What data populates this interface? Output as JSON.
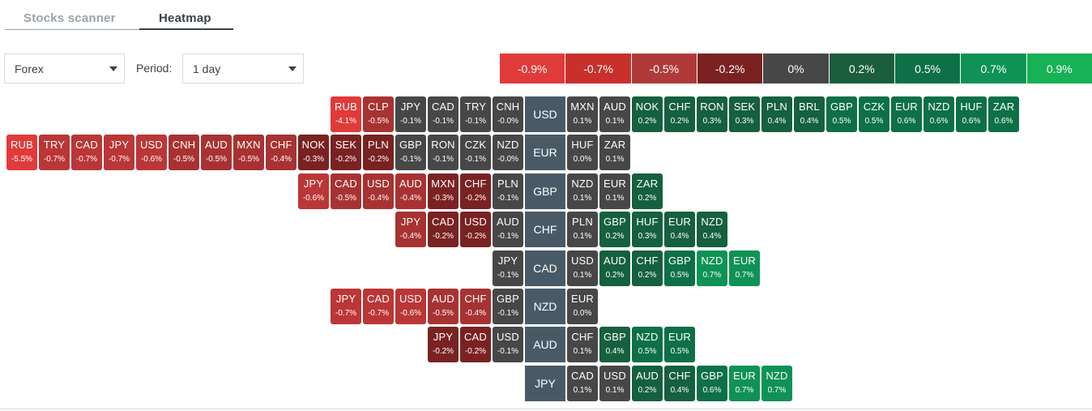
{
  "tabs": {
    "stocks_scanner": "Stocks scanner",
    "heatmap": "Heatmap"
  },
  "filters": {
    "market_value": "Forex",
    "period_label": "Period:",
    "period_value": "1 day"
  },
  "legend": [
    {
      "label": "-0.9%",
      "color": "#e13a3a"
    },
    {
      "label": "-0.7%",
      "color": "#c9302c"
    },
    {
      "label": "-0.5%",
      "color": "#b03a3a"
    },
    {
      "label": "-0.2%",
      "color": "#7a2222"
    },
    {
      "label": "0%",
      "color": "#474747"
    },
    {
      "label": "0.2%",
      "color": "#1a5e3d"
    },
    {
      "label": "0.5%",
      "color": "#0d7047"
    },
    {
      "label": "0.7%",
      "color": "#0f9256"
    },
    {
      "label": "0.9%",
      "color": "#17b156"
    }
  ],
  "rows": [
    {
      "base": "USD",
      "neg": [
        [
          "RUB",
          "-4.1%"
        ],
        [
          "CLP",
          "-0.5%"
        ],
        [
          "JPY",
          "-0.1%"
        ],
        [
          "CAD",
          "-0.1%"
        ],
        [
          "TRY",
          "-0.1%"
        ],
        [
          "CNH",
          "-0.0%"
        ]
      ],
      "pos": [
        [
          "MXN",
          "0.1%"
        ],
        [
          "AUD",
          "0.1%"
        ],
        [
          "NOK",
          "0.2%"
        ],
        [
          "CHF",
          "0.2%"
        ],
        [
          "RON",
          "0.3%"
        ],
        [
          "SEK",
          "0.3%"
        ],
        [
          "PLN",
          "0.4%"
        ],
        [
          "BRL",
          "0.4%"
        ],
        [
          "GBP",
          "0.5%"
        ],
        [
          "CZK",
          "0.5%"
        ],
        [
          "EUR",
          "0.6%"
        ],
        [
          "NZD",
          "0.6%"
        ],
        [
          "HUF",
          "0.6%"
        ],
        [
          "ZAR",
          "0.6%"
        ]
      ]
    },
    {
      "base": "EUR",
      "neg": [
        [
          "RUB",
          "-5.5%"
        ],
        [
          "TRY",
          "-0.7%"
        ],
        [
          "CAD",
          "-0.7%"
        ],
        [
          "JPY",
          "-0.7%"
        ],
        [
          "USD",
          "-0.6%"
        ],
        [
          "CNH",
          "-0.5%"
        ],
        [
          "AUD",
          "-0.5%"
        ],
        [
          "MXN",
          "-0.5%"
        ],
        [
          "CHF",
          "-0.4%"
        ],
        [
          "NOK",
          "-0.3%"
        ],
        [
          "SEK",
          "-0.2%"
        ],
        [
          "PLN",
          "-0.2%"
        ],
        [
          "GBP",
          "-0.1%"
        ],
        [
          "RON",
          "-0.1%"
        ],
        [
          "CZK",
          "-0.1%"
        ],
        [
          "NZD",
          "-0.0%"
        ]
      ],
      "pos": [
        [
          "HUF",
          "0.0%"
        ],
        [
          "ZAR",
          "0.1%"
        ]
      ]
    },
    {
      "base": "GBP",
      "neg": [
        [
          "JPY",
          "-0.6%"
        ],
        [
          "CAD",
          "-0.5%"
        ],
        [
          "USD",
          "-0.4%"
        ],
        [
          "AUD",
          "-0.4%"
        ],
        [
          "MXN",
          "-0.3%"
        ],
        [
          "CHF",
          "-0.2%"
        ],
        [
          "PLN",
          "-0.1%"
        ]
      ],
      "pos": [
        [
          "NZD",
          "0.1%"
        ],
        [
          "EUR",
          "0.1%"
        ],
        [
          "ZAR",
          "0.2%"
        ]
      ]
    },
    {
      "base": "CHF",
      "neg": [
        [
          "JPY",
          "-0.4%"
        ],
        [
          "CAD",
          "-0.2%"
        ],
        [
          "USD",
          "-0.2%"
        ],
        [
          "AUD",
          "-0.1%"
        ]
      ],
      "pos": [
        [
          "PLN",
          "0.1%"
        ],
        [
          "GBP",
          "0.2%"
        ],
        [
          "HUF",
          "0.3%"
        ],
        [
          "EUR",
          "0.4%"
        ],
        [
          "NZD",
          "0.4%"
        ]
      ]
    },
    {
      "base": "CAD",
      "neg": [
        [
          "JPY",
          "-0.1%"
        ]
      ],
      "pos": [
        [
          "USD",
          "0.1%"
        ],
        [
          "AUD",
          "0.2%"
        ],
        [
          "CHF",
          "0.2%"
        ],
        [
          "GBP",
          "0.5%"
        ],
        [
          "NZD",
          "0.7%"
        ],
        [
          "EUR",
          "0.7%"
        ]
      ]
    },
    {
      "base": "NZD",
      "neg": [
        [
          "JPY",
          "-0.7%"
        ],
        [
          "CAD",
          "-0.7%"
        ],
        [
          "USD",
          "-0.6%"
        ],
        [
          "AUD",
          "-0.5%"
        ],
        [
          "CHF",
          "-0.4%"
        ],
        [
          "GBP",
          "-0.1%"
        ]
      ],
      "pos": [
        [
          "EUR",
          "0.0%"
        ]
      ]
    },
    {
      "base": "AUD",
      "neg": [
        [
          "JPY",
          "-0.2%"
        ],
        [
          "CAD",
          "-0.2%"
        ],
        [
          "USD",
          "-0.1%"
        ]
      ],
      "pos": [
        [
          "CHF",
          "0.1%"
        ],
        [
          "GBP",
          "0.4%"
        ],
        [
          "NZD",
          "0.5%"
        ],
        [
          "EUR",
          "0.5%"
        ]
      ]
    },
    {
      "base": "JPY",
      "neg": [],
      "pos": [
        [
          "CAD",
          "0.1%"
        ],
        [
          "USD",
          "0.1%"
        ],
        [
          "AUD",
          "0.2%"
        ],
        [
          "CHF",
          "0.4%"
        ],
        [
          "GBP",
          "0.6%"
        ],
        [
          "EUR",
          "0.7%"
        ],
        [
          "NZD",
          "0.7%"
        ]
      ]
    }
  ]
}
